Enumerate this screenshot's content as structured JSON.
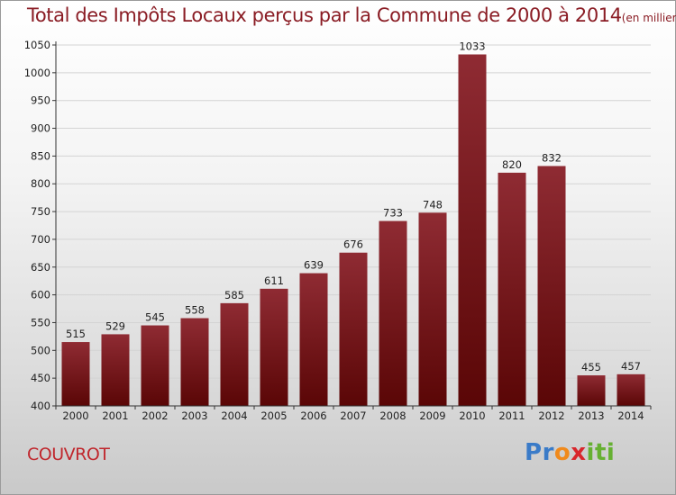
{
  "header": {
    "title": "Total des Impôts Locaux perçus par la Commune de 2000 à 2014",
    "unit": "(en milliers d'€)"
  },
  "footer": {
    "commune": "COUVROT",
    "logo_letters": [
      "P",
      "r",
      "o",
      "x",
      "i",
      "t",
      "i"
    ],
    "logo_colors": [
      "#3a7bc8",
      "#3a7bc8",
      "#f08a1c",
      "#d8262c",
      "#66b032",
      "#66b032",
      "#66b032"
    ]
  },
  "colors": {
    "bar_top": "#8f2b33",
    "bar_bottom": "#5a0606",
    "axis": "#333333",
    "grid": "#d4d4d4",
    "text": "#222222"
  },
  "chart_data": {
    "type": "bar",
    "title": "Total des Impôts Locaux perçus par la Commune de 2000 à 2014",
    "xlabel": "",
    "ylabel": "",
    "categories": [
      "2000",
      "2001",
      "2002",
      "2003",
      "2004",
      "2005",
      "2006",
      "2007",
      "2008",
      "2009",
      "2010",
      "2011",
      "2012",
      "2013",
      "2014"
    ],
    "values": [
      515,
      529,
      545,
      558,
      585,
      611,
      639,
      676,
      733,
      748,
      1033,
      820,
      832,
      455,
      457
    ],
    "ylim": [
      400,
      1050
    ],
    "yticks": [
      400,
      450,
      500,
      550,
      600,
      650,
      700,
      750,
      800,
      850,
      900,
      950,
      1000,
      1050
    ],
    "grid": true,
    "data_labels": true
  }
}
